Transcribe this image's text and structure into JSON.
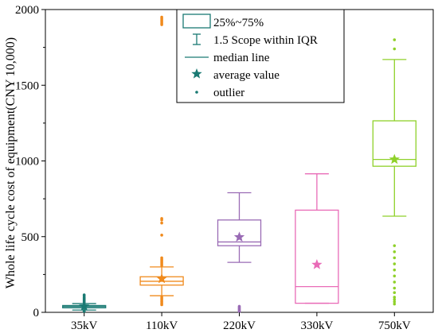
{
  "chart_data": {
    "type": "box",
    "ylabel": "Whole life cycle cost of equipment(CNY 10,000)",
    "xlabel": "",
    "ylim": [
      0,
      2000
    ],
    "yticks": [
      0,
      500,
      1000,
      1500,
      2000
    ],
    "grid": false,
    "legend_position": "top-center",
    "legend": {
      "box": "25%~75%",
      "whisker": "1.5 Scope within IQR",
      "median": "median line",
      "mean": "average value",
      "outlier": "outlier"
    },
    "categories": [
      "35kV",
      "110kV",
      "220kV",
      "330kV",
      "750kV"
    ],
    "colors": [
      "#1a7a73",
      "#f08a1c",
      "#9a6bb5",
      "#e96bb7",
      "#8fd12a"
    ],
    "boxes": [
      {
        "q1": 30,
        "median": 38,
        "q3": 45,
        "whisker_low": 15,
        "whisker_high": 58,
        "mean": 40,
        "outliers": [
          5,
          8,
          10,
          12,
          65,
          70,
          75,
          80,
          85,
          90,
          95,
          100,
          110,
          115
        ]
      },
      {
        "q1": 180,
        "median": 205,
        "q3": 235,
        "whisker_low": 110,
        "whisker_high": 300,
        "mean": 222,
        "outliers": [
          50,
          60,
          70,
          80,
          90,
          100,
          310,
          320,
          330,
          340,
          350,
          360,
          510,
          590,
          610,
          620,
          1900,
          1910,
          1920,
          1930,
          1940,
          1950
        ]
      },
      {
        "q1": 440,
        "median": 465,
        "q3": 610,
        "whisker_low": 330,
        "whisker_high": 790,
        "mean": 497,
        "outliers": [
          5,
          10,
          15,
          20,
          25,
          30,
          35,
          40
        ]
      },
      {
        "q1": 60,
        "median": 170,
        "q3": 675,
        "whisker_low": 60,
        "whisker_high": 915,
        "mean": 315,
        "outliers": []
      },
      {
        "q1": 965,
        "median": 1010,
        "q3": 1265,
        "whisker_low": 635,
        "whisker_high": 1670,
        "mean": 1010,
        "outliers": [
          55,
          70,
          85,
          100,
          130,
          160,
          200,
          240,
          280,
          320,
          360,
          400,
          440,
          1740,
          1800
        ]
      }
    ]
  }
}
